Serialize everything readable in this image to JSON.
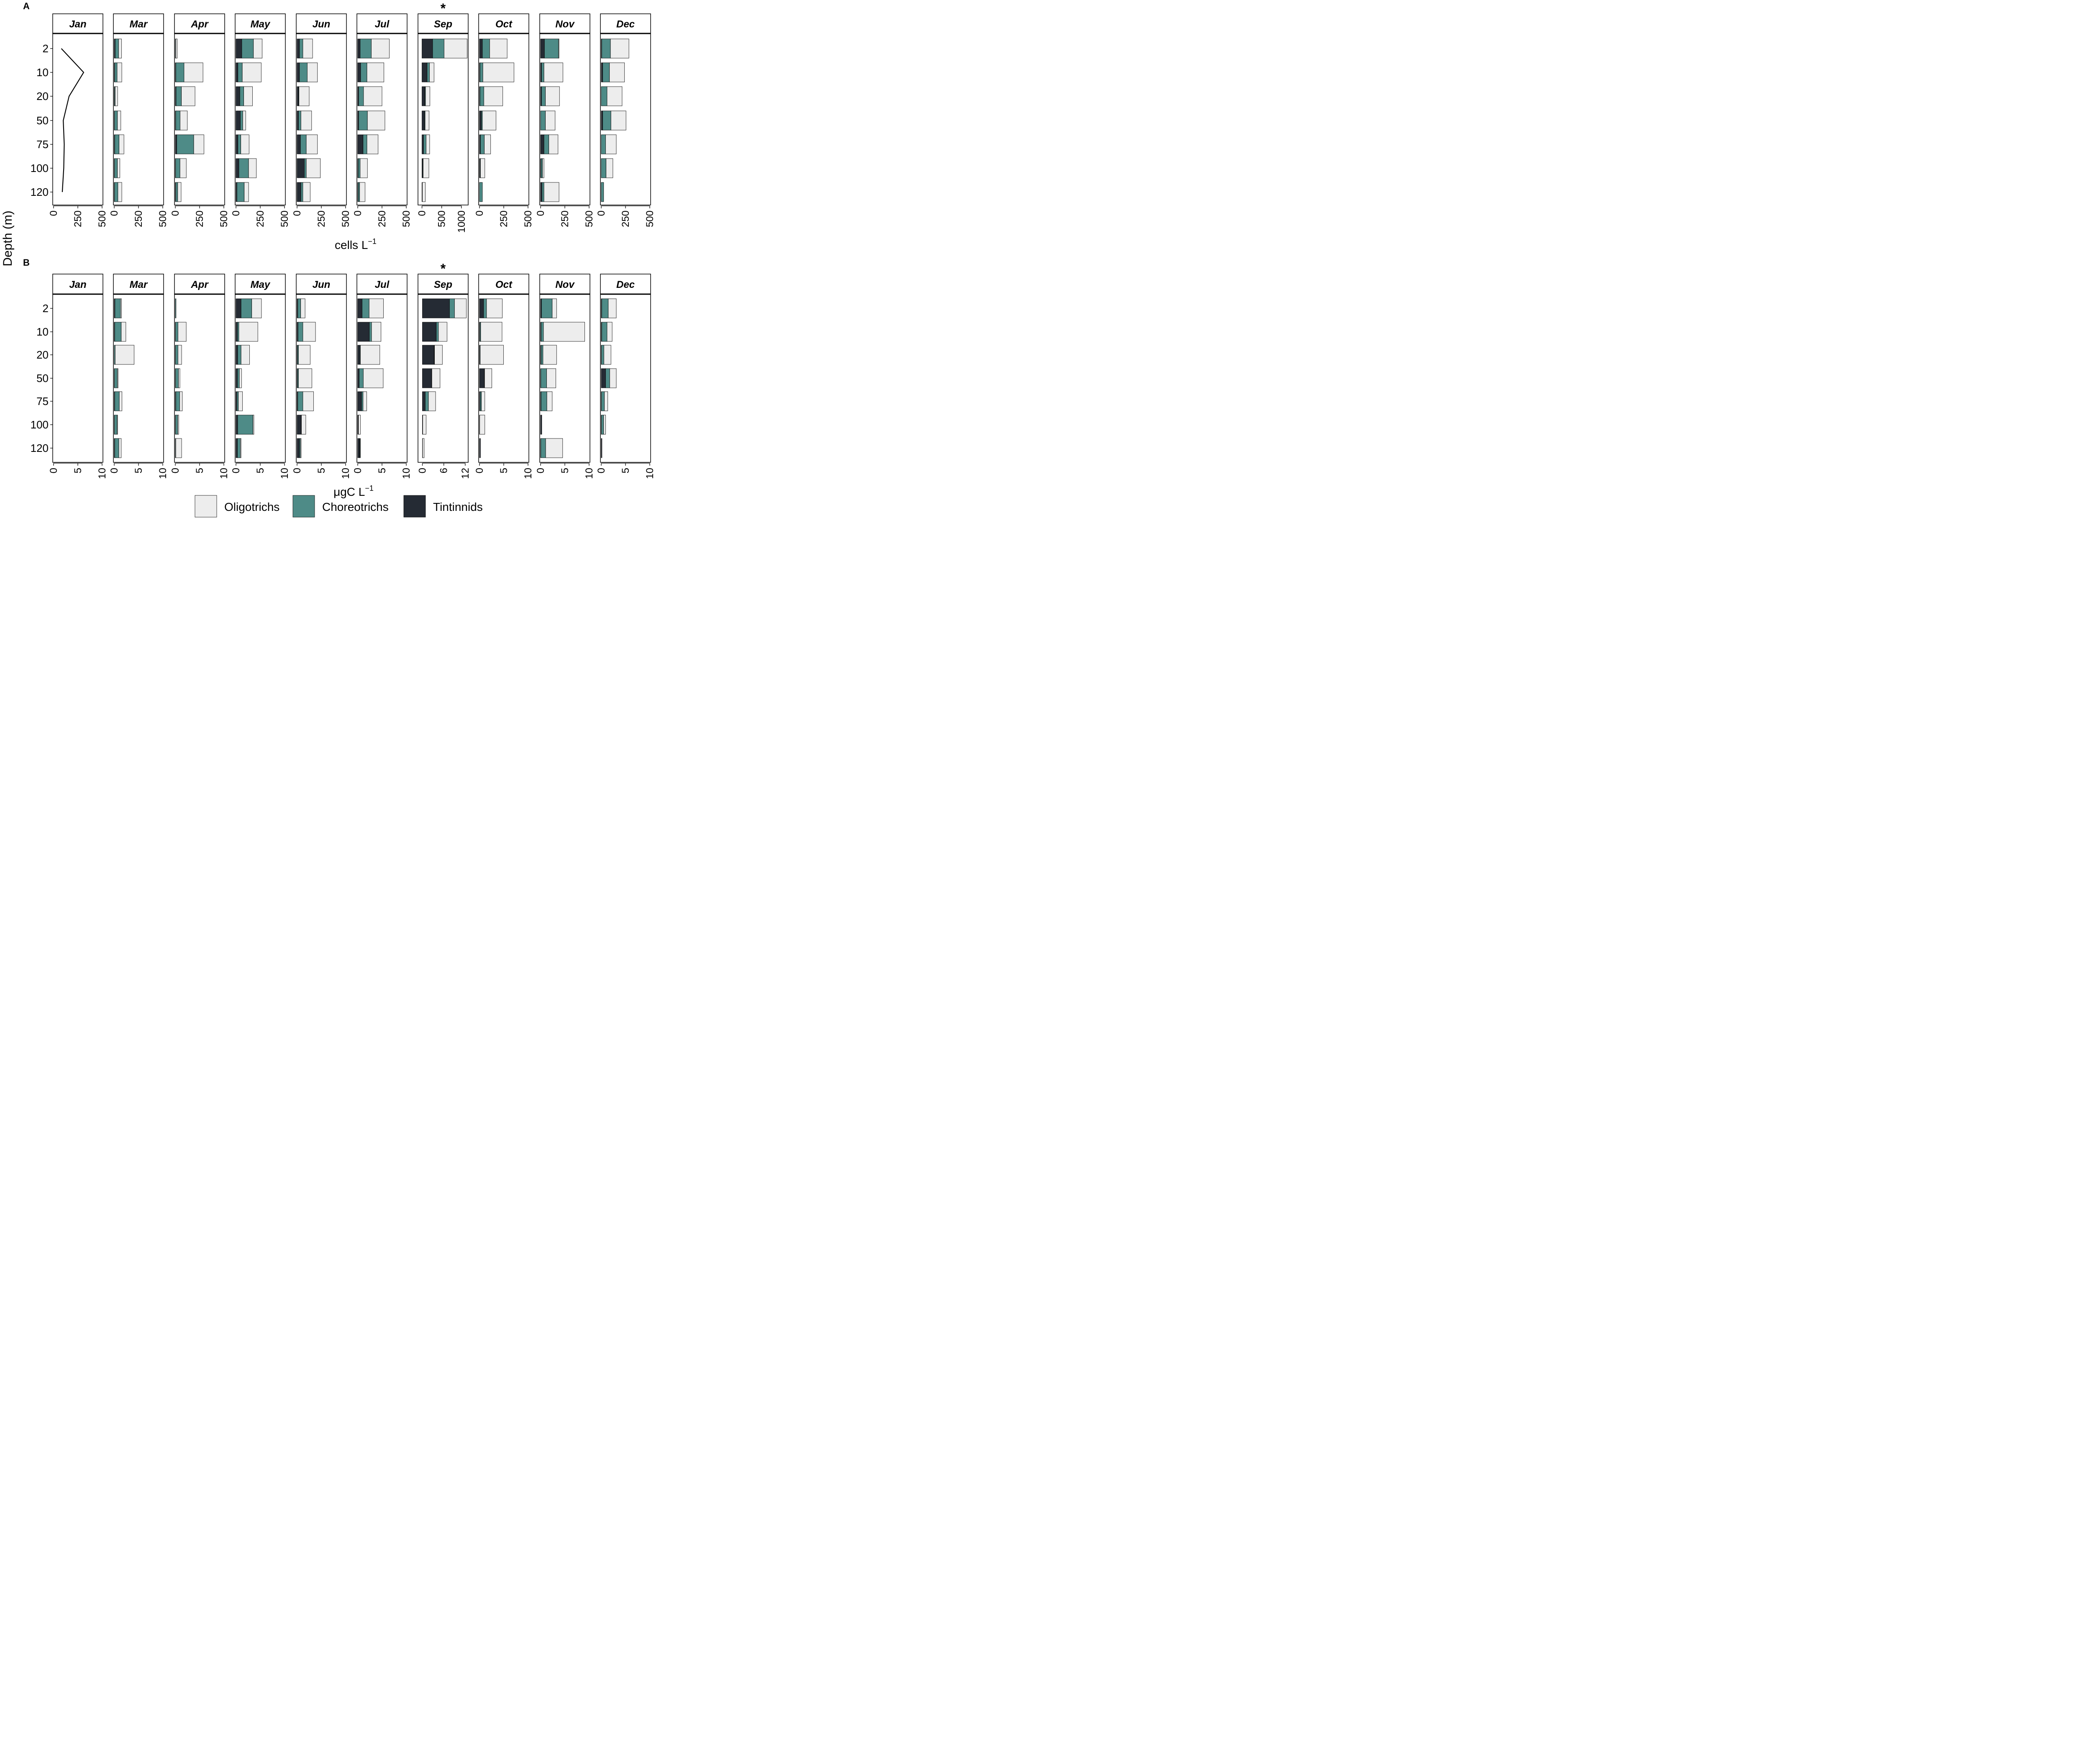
{
  "figure": {
    "panel_a_label": "A",
    "panel_b_label": "B",
    "y_axis_title": "Depth (m)",
    "significance_marker": "*",
    "colors": {
      "Oligotrichs": "#ededed",
      "Choreotrichs": "#4e8b87",
      "Tintinnids": "#252b34",
      "stroke": "#000000"
    }
  },
  "legend": {
    "items": [
      "Oligotrichs",
      "Choreotrichs",
      "Tintinnids"
    ]
  },
  "chart_data": [
    {
      "type": "bar",
      "orientation": "horizontal",
      "stacked": true,
      "panel": "A",
      "xlabel": "cells L",
      "xlabel_superscript": "−1",
      "ylabel": "Depth (m)",
      "depths": [
        2,
        10,
        20,
        50,
        75,
        100,
        120
      ],
      "series_order": [
        "Tintinnids",
        "Choreotrichs",
        "Oligotrichs"
      ],
      "facets": [
        {
          "month": "Jan",
          "xlim": [
            0,
            500
          ],
          "ticks": [
            0,
            250,
            500
          ],
          "marker": "",
          "profile_line": true,
          "line_values": [
            80,
            310,
            160,
            100,
            110,
            105,
            90
          ]
        },
        {
          "month": "Mar",
          "xlim": [
            0,
            500
          ],
          "ticks": [
            0,
            250,
            500
          ],
          "marker": "",
          "Tintinnids": [
            10,
            5,
            3,
            3,
            5,
            3,
            3
          ],
          "Choreotrichs": [
            35,
            25,
            7,
            30,
            45,
            30,
            35
          ],
          "Oligotrichs": [
            30,
            48,
            25,
            35,
            50,
            25,
            40
          ]
        },
        {
          "month": "Apr",
          "xlim": [
            0,
            500
          ],
          "ticks": [
            0,
            250,
            500
          ],
          "marker": "",
          "Tintinnids": [
            0,
            5,
            8,
            4,
            15,
            3,
            5
          ],
          "Choreotrichs": [
            5,
            85,
            55,
            45,
            175,
            45,
            20
          ],
          "Oligotrichs": [
            15,
            195,
            140,
            75,
            105,
            65,
            35
          ]
        },
        {
          "month": "May",
          "xlim": [
            0,
            500
          ],
          "ticks": [
            0,
            250,
            500
          ],
          "marker": "",
          "Tintinnids": [
            60,
            20,
            40,
            45,
            20,
            30,
            10
          ],
          "Choreotrichs": [
            120,
            45,
            40,
            25,
            30,
            100,
            75
          ],
          "Oligotrichs": [
            90,
            195,
            90,
            30,
            85,
            80,
            45
          ]
        },
        {
          "month": "Jun",
          "xlim": [
            0,
            500
          ],
          "ticks": [
            0,
            250,
            500
          ],
          "marker": "",
          "Tintinnids": [
            25,
            25,
            15,
            15,
            35,
            75,
            40
          ],
          "Choreotrichs": [
            35,
            80,
            5,
            25,
            60,
            20,
            20
          ],
          "Oligotrichs": [
            100,
            105,
            105,
            110,
            115,
            145,
            75
          ]
        },
        {
          "month": "Jul",
          "xlim": [
            0,
            500
          ],
          "ticks": [
            0,
            250,
            500
          ],
          "marker": "",
          "Tintinnids": [
            25,
            30,
            10,
            10,
            55,
            5,
            5
          ],
          "Choreotrichs": [
            115,
            65,
            50,
            90,
            40,
            20,
            15
          ],
          "Oligotrichs": [
            185,
            175,
            190,
            180,
            115,
            75,
            55
          ]
        },
        {
          "month": "Sep",
          "xlim": [
            -80,
            1150
          ],
          "ticks": [
            0,
            500,
            1000
          ],
          "marker": "*",
          "Tintinnids": [
            270,
            130,
            75,
            65,
            40,
            20,
            10
          ],
          "Choreotrichs": [
            290,
            60,
            15,
            15,
            65,
            10,
            0
          ],
          "Oligotrichs": [
            585,
            115,
            110,
            100,
            90,
            145,
            75
          ]
        },
        {
          "month": "Oct",
          "xlim": [
            0,
            500
          ],
          "ticks": [
            0,
            250,
            500
          ],
          "marker": "",
          "Tintinnids": [
            30,
            5,
            5,
            20,
            10,
            5,
            0
          ],
          "Choreotrichs": [
            75,
            30,
            40,
            10,
            40,
            5,
            30
          ],
          "Oligotrichs": [
            180,
            320,
            195,
            140,
            65,
            45,
            0
          ]
        },
        {
          "month": "Nov",
          "xlim": [
            0,
            500
          ],
          "ticks": [
            0,
            250,
            500
          ],
          "marker": "",
          "Tintinnids": [
            40,
            10,
            10,
            0,
            35,
            5,
            15
          ],
          "Choreotrichs": [
            145,
            25,
            40,
            50,
            50,
            15,
            20
          ],
          "Oligotrichs": [
            5,
            195,
            145,
            100,
            95,
            15,
            155
          ]
        },
        {
          "month": "Dec",
          "xlim": [
            0,
            500
          ],
          "ticks": [
            0,
            250,
            500
          ],
          "marker": "",
          "Tintinnids": [
            5,
            15,
            0,
            15,
            0,
            0,
            0
          ],
          "Choreotrichs": [
            90,
            70,
            60,
            85,
            45,
            50,
            25
          ],
          "Oligotrichs": [
            190,
            155,
            155,
            155,
            110,
            70,
            0
          ]
        }
      ]
    },
    {
      "type": "bar",
      "orientation": "horizontal",
      "stacked": true,
      "panel": "B",
      "xlabel": "μgC L",
      "xlabel_superscript": "−1",
      "ylabel": "Depth (m)",
      "depths": [
        2,
        10,
        20,
        50,
        75,
        100,
        120
      ],
      "series_order": [
        "Tintinnids",
        "Choreotrichs",
        "Oligotrichs"
      ],
      "facets": [
        {
          "month": "Jan",
          "xlim": [
            0,
            10
          ],
          "ticks": [
            0,
            5,
            10
          ],
          "marker": "",
          "Tintinnids": [
            0,
            0,
            0,
            0,
            0,
            0,
            0
          ],
          "Choreotrichs": [
            0,
            0,
            0,
            0,
            0,
            0,
            0
          ],
          "Oligotrichs": [
            0,
            0,
            0,
            0,
            0,
            0,
            0
          ]
        },
        {
          "month": "Mar",
          "xlim": [
            0,
            10
          ],
          "ticks": [
            0,
            5,
            10
          ],
          "marker": "",
          "Tintinnids": [
            0.15,
            0.1,
            0,
            0.05,
            0.1,
            0.05,
            0.1
          ],
          "Choreotrichs": [
            1.15,
            1.35,
            0.2,
            0.6,
            0.95,
            0.55,
            0.85
          ],
          "Oligotrichs": [
            0.2,
            0.95,
            3.9,
            0.15,
            0.55,
            0.1,
            0.5
          ]
        },
        {
          "month": "Apr",
          "xlim": [
            0,
            10
          ],
          "ticks": [
            0,
            5,
            10
          ],
          "marker": "",
          "Tintinnids": [
            0,
            0.05,
            0.05,
            0.05,
            0.1,
            0.05,
            0
          ],
          "Choreotrichs": [
            0.15,
            0.5,
            0.5,
            0.6,
            0.8,
            0.45,
            0.1
          ],
          "Oligotrichs": [
            0,
            1.7,
            0.75,
            0.3,
            0.55,
            0.2,
            1.2
          ]
        },
        {
          "month": "May",
          "xlim": [
            0,
            10
          ],
          "ticks": [
            0,
            5,
            10
          ],
          "marker": "",
          "Tintinnids": [
            1.05,
            0.3,
            0.35,
            0.3,
            0.2,
            0.35,
            0.3
          ],
          "Choreotrichs": [
            2.2,
            0.3,
            0.7,
            0.4,
            0.3,
            3.15,
            0.6
          ],
          "Oligotrichs": [
            2.0,
            3.9,
            1.75,
            0.45,
            0.85,
            0.2,
            0.15
          ]
        },
        {
          "month": "Jun",
          "xlim": [
            0,
            10
          ],
          "ticks": [
            0,
            5,
            10
          ],
          "marker": "",
          "Tintinnids": [
            0.15,
            0.2,
            0.1,
            0.1,
            0.15,
            0.85,
            0.5
          ],
          "Choreotrichs": [
            0.6,
            1.0,
            0.2,
            0.2,
            1.05,
            0.05,
            0.2
          ],
          "Oligotrichs": [
            0.9,
            2.6,
            2.4,
            2.75,
            2.2,
            0.9,
            0.15
          ]
        },
        {
          "month": "Jul",
          "xlim": [
            0,
            10
          ],
          "ticks": [
            0,
            5,
            10
          ],
          "marker": "",
          "Tintinnids": [
            0.9,
            2.4,
            0.45,
            0.3,
            0.8,
            0.1,
            0.4
          ],
          "Choreotrichs": [
            1.45,
            0.45,
            0.1,
            0.85,
            0.3,
            0.05,
            0.1
          ],
          "Oligotrichs": [
            2.95,
            1.95,
            4.0,
            4.1,
            0.75,
            0.4,
            0.05
          ]
        },
        {
          "month": "Sep",
          "xlim": [
            -1,
            12.6
          ],
          "ticks": [
            0,
            6,
            12
          ],
          "marker": "*",
          "Tintinnids": [
            7.6,
            3.9,
            3.3,
            2.6,
            0.8,
            0.1,
            0.05
          ],
          "Choreotrichs": [
            1.4,
            0.6,
            0.1,
            0.05,
            0.9,
            0,
            0
          ],
          "Oligotrichs": [
            3.3,
            2.4,
            2.2,
            2.3,
            2.0,
            0.95,
            0.45
          ]
        },
        {
          "month": "Oct",
          "xlim": [
            0,
            10
          ],
          "ticks": [
            0,
            5,
            10
          ],
          "marker": "",
          "Tintinnids": [
            0.85,
            0.1,
            0.05,
            1.0,
            0.15,
            0.05,
            0.2
          ],
          "Choreotrichs": [
            0.6,
            0.15,
            0.1,
            0.05,
            0.25,
            0,
            0
          ],
          "Oligotrichs": [
            3.25,
            4.4,
            4.8,
            1.5,
            0.7,
            1.05,
            0
          ]
        },
        {
          "month": "Nov",
          "xlim": [
            0,
            10
          ],
          "ticks": [
            0,
            5,
            10
          ],
          "marker": "",
          "Tintinnids": [
            0.2,
            0.1,
            0.1,
            0.05,
            0.1,
            0.25,
            0.05
          ],
          "Choreotrichs": [
            2.2,
            0.5,
            0.4,
            1.2,
            1.2,
            0,
            1.0
          ],
          "Oligotrichs": [
            0.9,
            8.5,
            2.8,
            1.9,
            1.1,
            0,
            3.5
          ]
        },
        {
          "month": "Dec",
          "xlim": [
            0,
            10
          ],
          "ticks": [
            0,
            5,
            10
          ],
          "marker": "",
          "Tintinnids": [
            0.1,
            0.1,
            0.05,
            0.9,
            0.05,
            0.05,
            0.15
          ],
          "Choreotrichs": [
            1.35,
            1.1,
            0.5,
            0.85,
            0.6,
            0.45,
            0
          ],
          "Oligotrichs": [
            1.65,
            1.05,
            1.45,
            1.35,
            0.7,
            0.4,
            0
          ]
        }
      ]
    }
  ]
}
